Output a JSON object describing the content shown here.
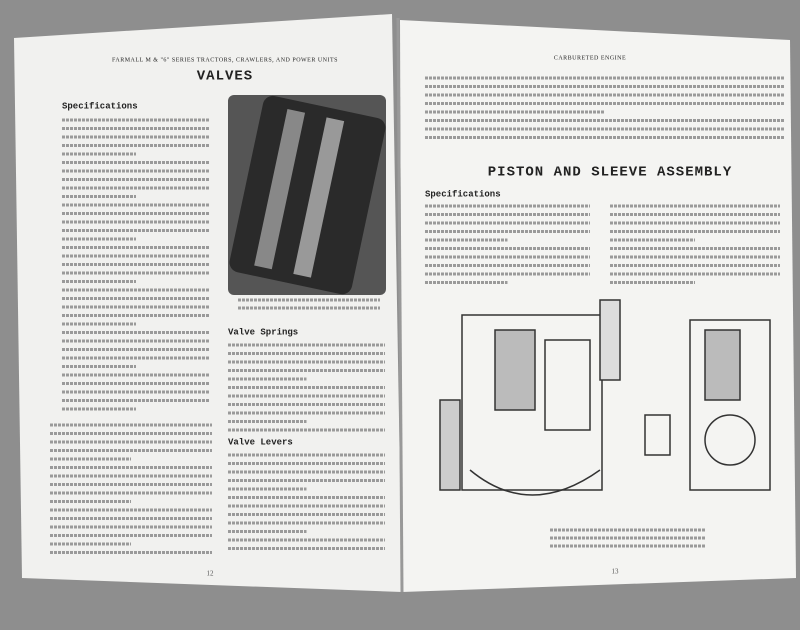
{
  "left_page": {
    "header": "FARMALL M & \"6\" SERIES TRACTORS, CRAWLERS, AND POWER UNITS",
    "title": "VALVES",
    "sections": [
      "Specifications",
      "Valve Springs",
      "Valve Levers"
    ],
    "page_number": "12"
  },
  "right_page": {
    "header": "CARBURETED ENGINE",
    "title": "PISTON AND SLEEVE ASSEMBLY",
    "sections": [
      "Specifications"
    ],
    "page_number": "13"
  }
}
